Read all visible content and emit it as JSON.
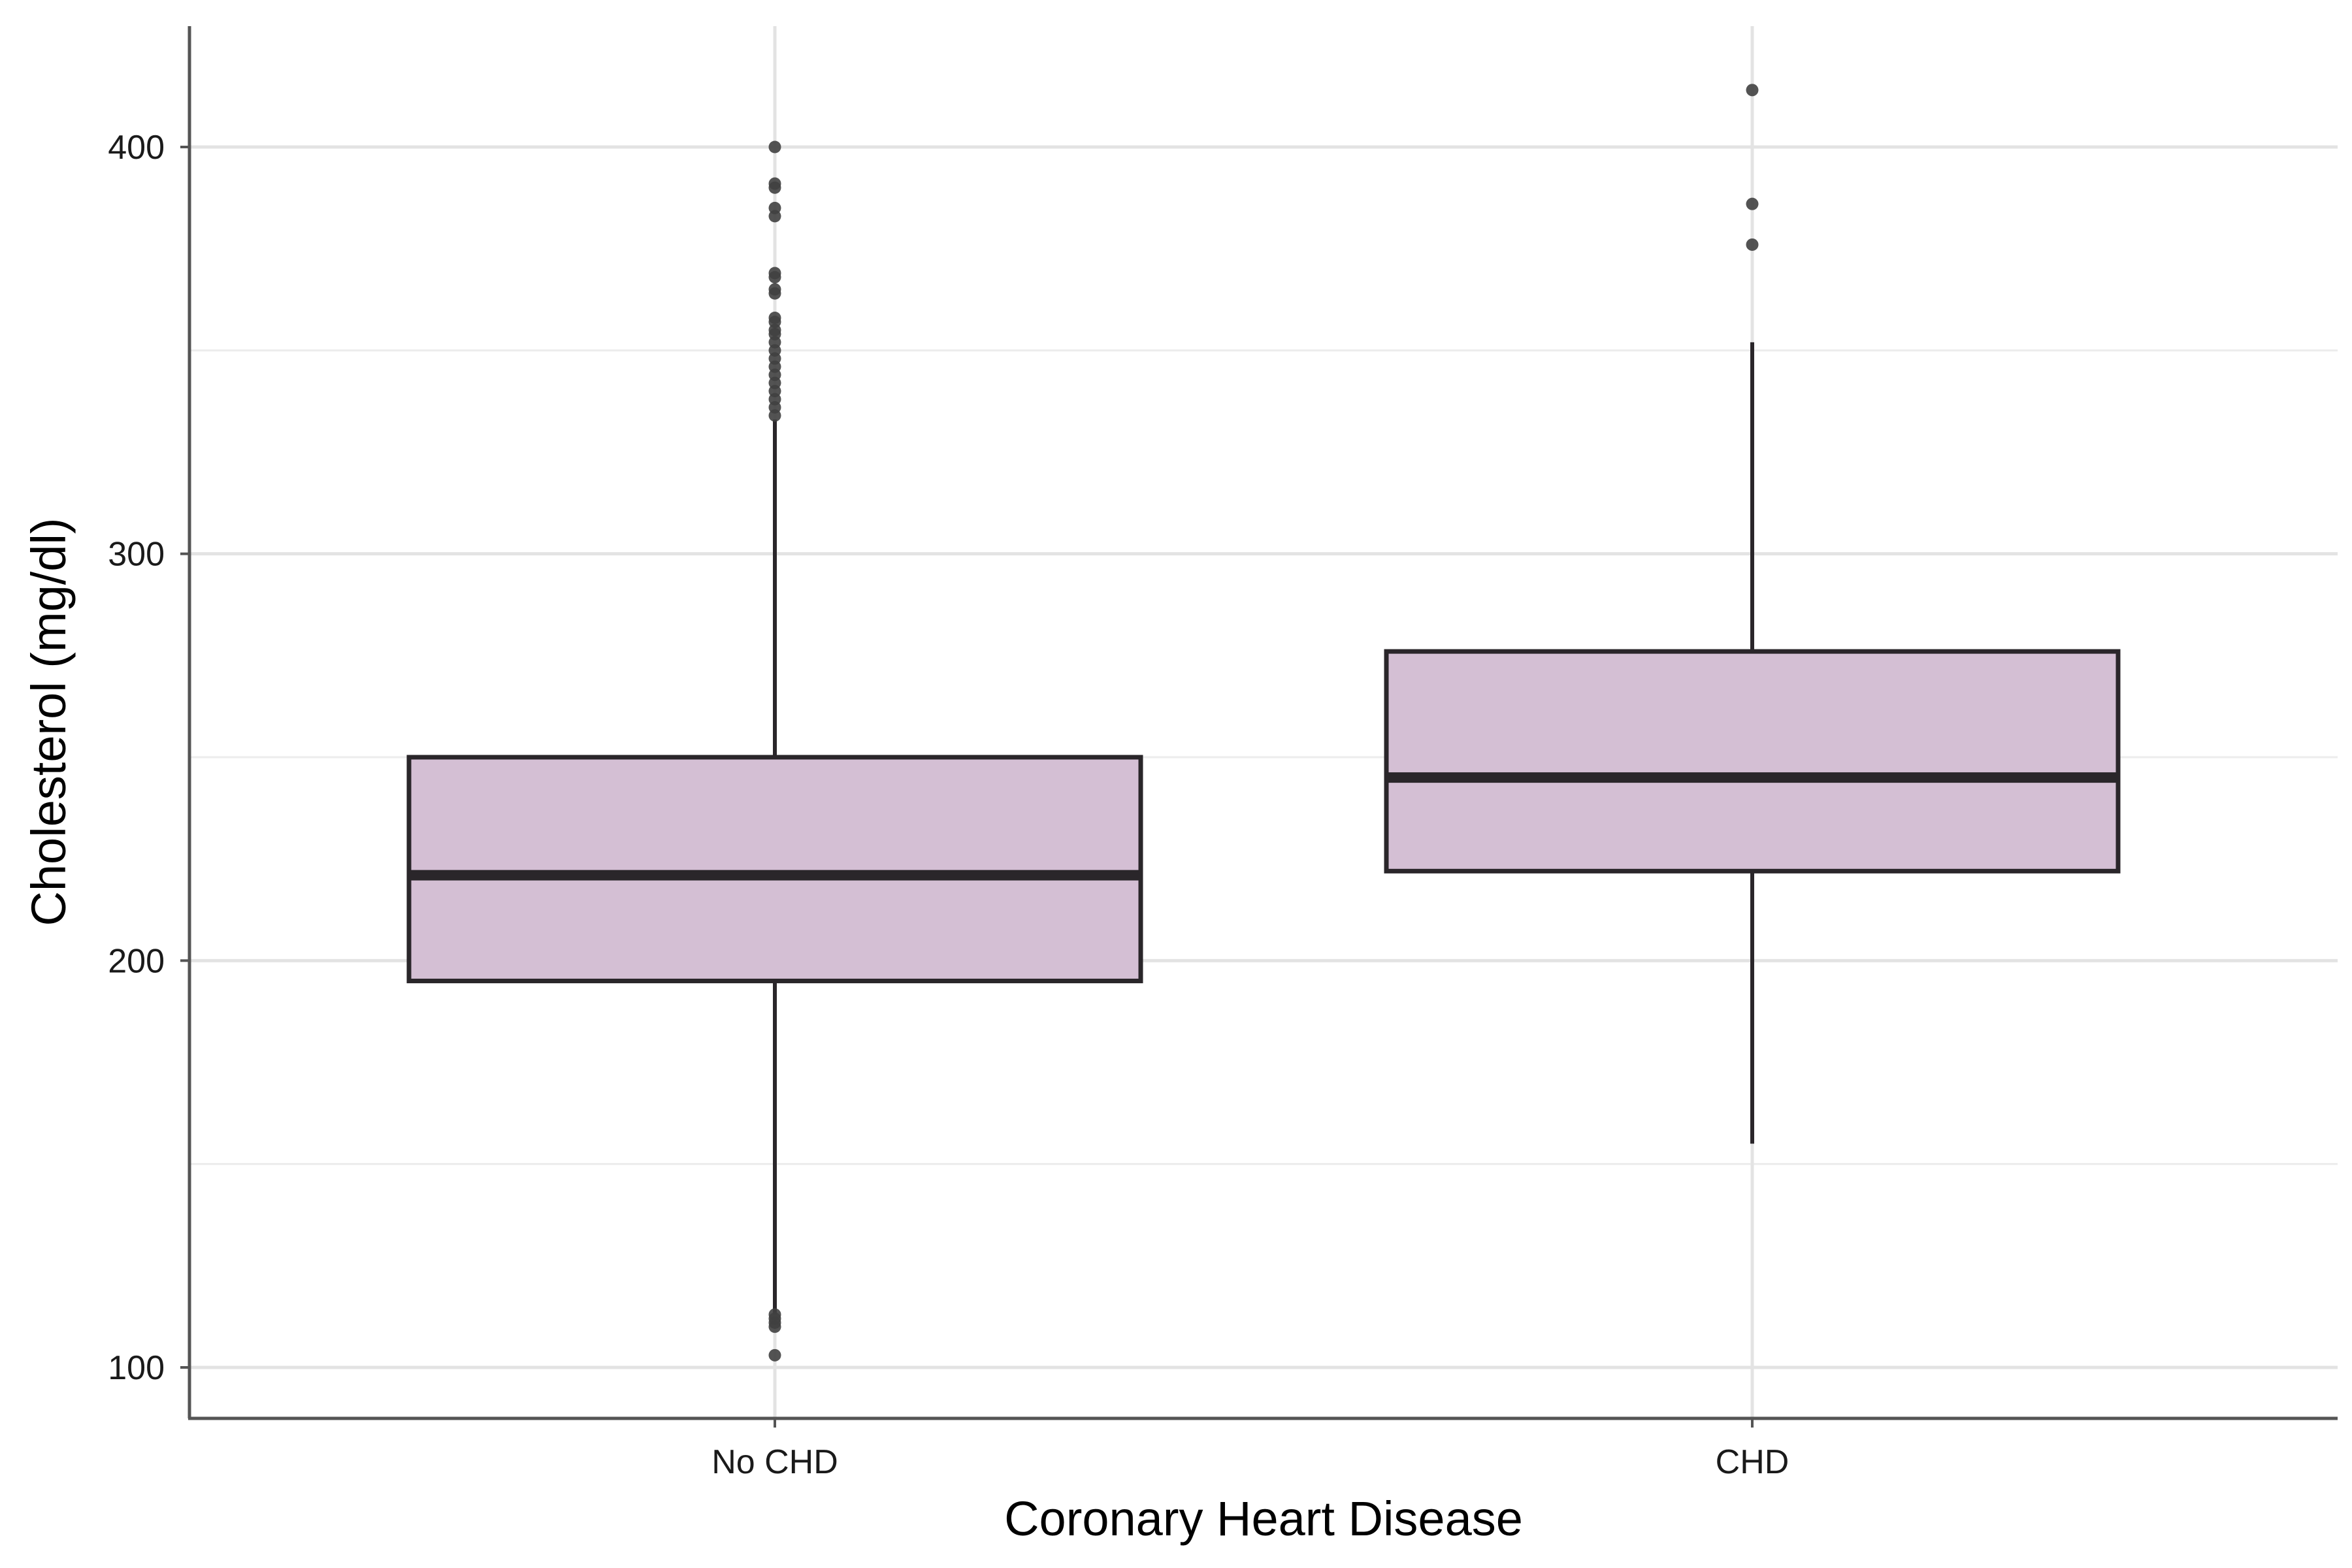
{
  "chart_data": {
    "type": "box",
    "xlabel": "Coronary Heart Disease",
    "ylabel": "Cholesterol (mg/dl)",
    "ylim": [
      88,
      430
    ],
    "y_ticks": [
      100,
      200,
      300,
      400
    ],
    "grid": true,
    "categories": [
      "No CHD",
      "CHD"
    ],
    "box_fill": "#d4bfd4",
    "box_stroke": "#2a262a",
    "point_color": "#404040",
    "boxes": [
      {
        "category": "No CHD",
        "whisker_low": 113,
        "q1": 195,
        "median": 221,
        "q3": 250,
        "whisker_high": 333,
        "outliers": [
          103,
          110,
          111,
          112,
          113,
          334,
          336,
          338,
          340,
          342,
          344,
          346,
          348,
          350,
          352,
          354,
          355,
          357,
          358,
          364,
          365,
          368,
          369,
          383,
          385,
          390,
          391,
          400
        ]
      },
      {
        "category": "CHD",
        "whisker_low": 155,
        "q1": 222,
        "median": 245,
        "q3": 276,
        "whisker_high": 352,
        "outliers": [
          376,
          386,
          414
        ]
      }
    ]
  }
}
